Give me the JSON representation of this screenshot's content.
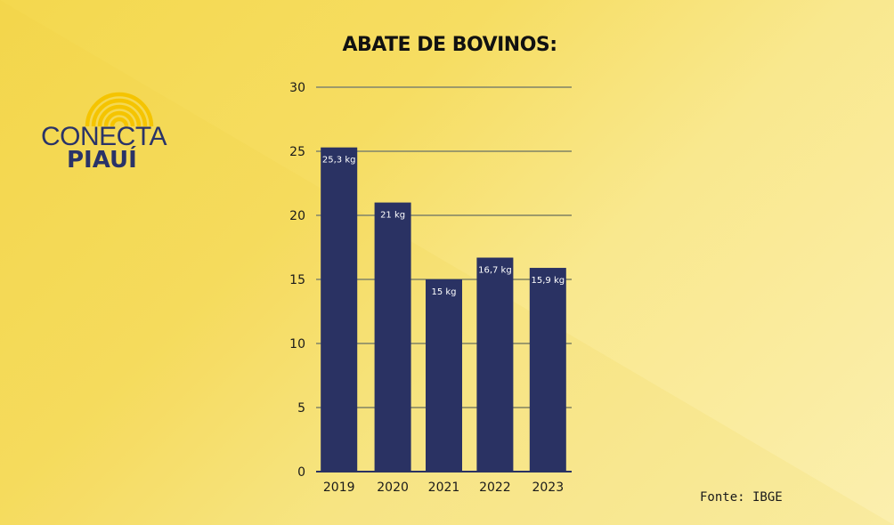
{
  "brand": {
    "line1": "CONECTA",
    "line2": "PIAUÍ",
    "arc_color": "#f5c400",
    "text_color": "#2a3368"
  },
  "source": "Fonte: IBGE",
  "colors": {
    "bar": "#2a3263",
    "grid": "#9d9a6a",
    "axis": "#2a3263"
  },
  "chart_data": {
    "type": "bar",
    "title": "ABATE DE BOVINOS:",
    "xlabel": "",
    "ylabel": "",
    "categories": [
      "2019",
      "2020",
      "2021",
      "2022",
      "2023"
    ],
    "values": [
      25.3,
      21,
      15,
      16.7,
      15.9
    ],
    "data_labels": [
      "25,3 kg",
      "21 kg",
      "15 kg",
      "16,7 kg",
      "15,9 kg"
    ],
    "ylim": [
      0,
      30
    ],
    "yticks": [
      "0",
      "5",
      "10",
      "15",
      "20",
      "25",
      "30"
    ],
    "grid": true,
    "legend": "none"
  }
}
